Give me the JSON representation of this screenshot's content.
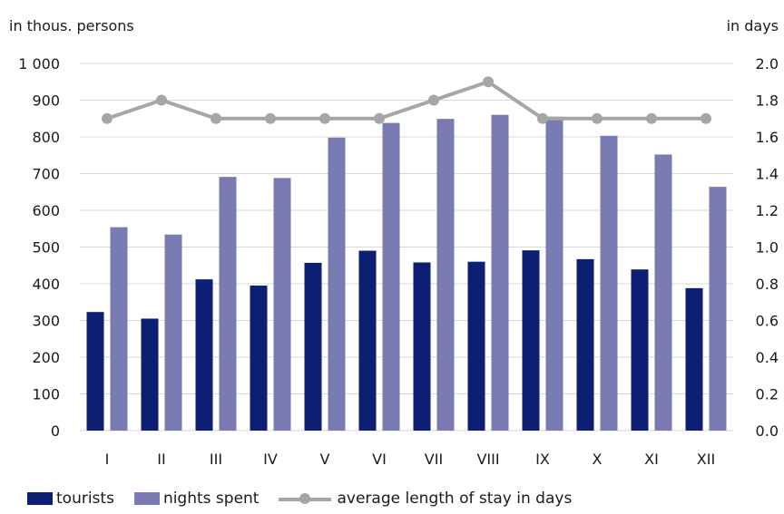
{
  "chart_data": {
    "type": "bar",
    "categories": [
      "I",
      "II",
      "III",
      "IV",
      "V",
      "VI",
      "VII",
      "VIII",
      "IX",
      "X",
      "XI",
      "XII"
    ],
    "series": [
      {
        "name": "tourists",
        "type": "bar",
        "axis": "left",
        "color": "#0d1f73",
        "values": [
          323,
          305,
          412,
          395,
          457,
          490,
          458,
          460,
          491,
          467,
          439,
          388
        ]
      },
      {
        "name": "nights spent",
        "type": "bar",
        "axis": "left",
        "color": "#7a7bb2",
        "values": [
          554,
          534,
          691,
          688,
          798,
          838,
          849,
          860,
          855,
          803,
          752,
          664
        ]
      },
      {
        "name": "average length of stay in days",
        "type": "line",
        "axis": "right",
        "color": "#a6a6a6",
        "values": [
          1.7,
          1.8,
          1.7,
          1.7,
          1.7,
          1.7,
          1.8,
          1.9,
          1.7,
          1.7,
          1.7,
          1.7
        ]
      }
    ],
    "y_left": {
      "label": "in thous. persons",
      "ylim": [
        0,
        1000
      ],
      "ticks": [
        0,
        100,
        200,
        300,
        400,
        500,
        600,
        700,
        800,
        900,
        1000
      ],
      "tick_labels": [
        "0",
        "100",
        "200",
        "300",
        "400",
        "500",
        "600",
        "700",
        "800",
        "900",
        "1 000"
      ]
    },
    "y_right": {
      "label": "in days",
      "ylim": [
        0,
        2.0
      ],
      "ticks": [
        0,
        0.2,
        0.4,
        0.6,
        0.8,
        1.0,
        1.2,
        1.4,
        1.6,
        1.8,
        2.0
      ],
      "tick_labels": [
        "0.0",
        "0.2",
        "0.4",
        "0.6",
        "0.8",
        "1.0",
        "1.2",
        "1.4",
        "1.6",
        "1.8",
        "2.0"
      ]
    },
    "grid": true,
    "legend_position": "bottom-left"
  },
  "legend": {
    "tourists": "tourists",
    "nights": "nights spent",
    "avg": "average length of stay in days"
  }
}
